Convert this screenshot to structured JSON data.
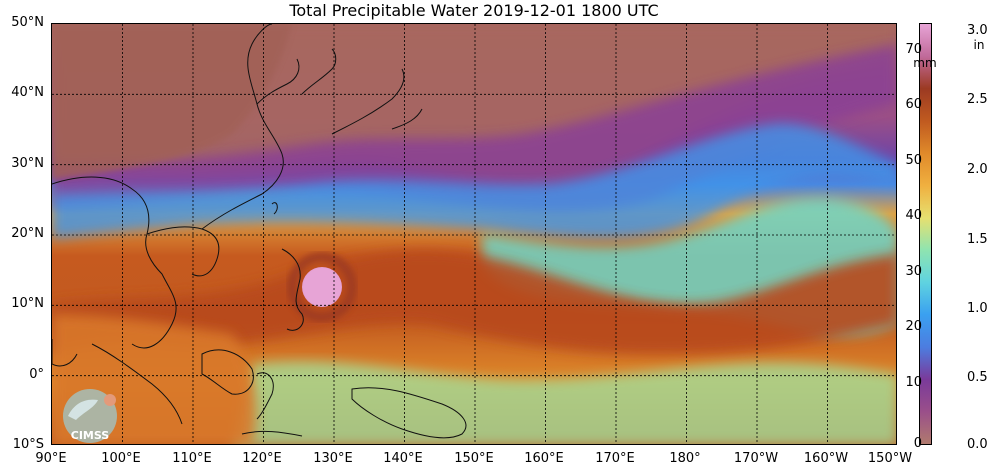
{
  "title": "Total Precipitable Water  2019-12-01 1800 UTC",
  "lat_labels": [
    "50°N",
    "40°N",
    "30°N",
    "20°N",
    "10°N",
    "0°",
    "10°S"
  ],
  "lon_labels": [
    "90°E",
    "100°E",
    "110°E",
    "120°E",
    "130°E",
    "140°E",
    "150°E",
    "160°E",
    "170°E",
    "180°",
    "170°W",
    "160°W",
    "150°W"
  ],
  "colorbar": {
    "left_unit": "mm",
    "right_unit": "in",
    "mm_ticks": [
      "70",
      "60",
      "50",
      "40",
      "30",
      "20",
      "10",
      "0"
    ],
    "in_ticks": [
      "3.0",
      "2.5",
      "2.0",
      "1.5",
      "1.0",
      "0.5",
      "0.0"
    ],
    "mm_range": [
      0,
      76
    ],
    "colors": [
      "#b07a6e",
      "#9a4f8a",
      "#7a3a9a",
      "#4c7de0",
      "#3aa0f0",
      "#5fd3e0",
      "#8fe4b0",
      "#e6e070",
      "#f0b040",
      "#e08a2a",
      "#c05a20",
      "#9c3a22",
      "#c06a9a",
      "#e7a4d6"
    ]
  },
  "colors": {
    "land_dry": "#a86a60",
    "ocean_moist": "#c8561f",
    "typhoon_core": "#e7a4d6"
  },
  "logo_text": "CIMSS"
}
